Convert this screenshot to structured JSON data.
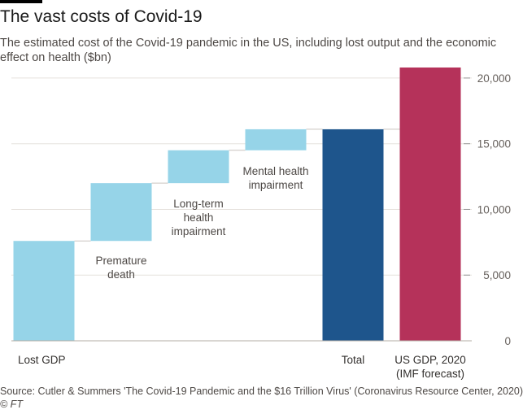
{
  "header": {
    "title": "The vast costs of Covid-19",
    "subtitle": "The estimated cost of the Covid-19 pandemic in the US, including lost output and the economic effect on health ($bn)"
  },
  "footer": {
    "source": "Source: Cutler & Summers 'The Covid-19 Pandemic and the $16 Trillion Virus' (Coronavirus Resource Center, 2020)",
    "copyright": "© FT"
  },
  "chart_data": {
    "type": "bar",
    "subtype": "waterfall",
    "title": "The vast costs of Covid-19",
    "subtitle": "The estimated cost of the Covid-19 pandemic in the US, including lost output and the economic effect on health ($bn)",
    "categories": [
      [
        "Lost GDP"
      ],
      [
        "Premature",
        "death"
      ],
      [
        "Long-term",
        "health",
        "impairment"
      ],
      [
        "Mental health",
        "impairment"
      ],
      [
        "Total"
      ],
      [
        "US GDP, 2020",
        "(IMF forecast)"
      ]
    ],
    "bars": [
      {
        "start": 0,
        "end": 7600,
        "kind": "component"
      },
      {
        "start": 7600,
        "end": 12000,
        "kind": "component"
      },
      {
        "start": 12000,
        "end": 14500,
        "kind": "component"
      },
      {
        "start": 14500,
        "end": 16100,
        "kind": "component"
      },
      {
        "start": 0,
        "end": 16100,
        "kind": "total"
      },
      {
        "start": 0,
        "end": 20800,
        "kind": "comparison"
      }
    ],
    "colors": {
      "component": "#96d4e8",
      "total": "#1e558c",
      "comparison": "#b5325a"
    },
    "ylim": [
      0,
      20800
    ],
    "yticks": [
      0,
      5000,
      10000,
      15000,
      20000
    ],
    "ytick_labels": [
      "0",
      "5,000",
      "10,000",
      "15,000",
      "20,000"
    ],
    "y_axis_position": "right",
    "grid": true
  }
}
